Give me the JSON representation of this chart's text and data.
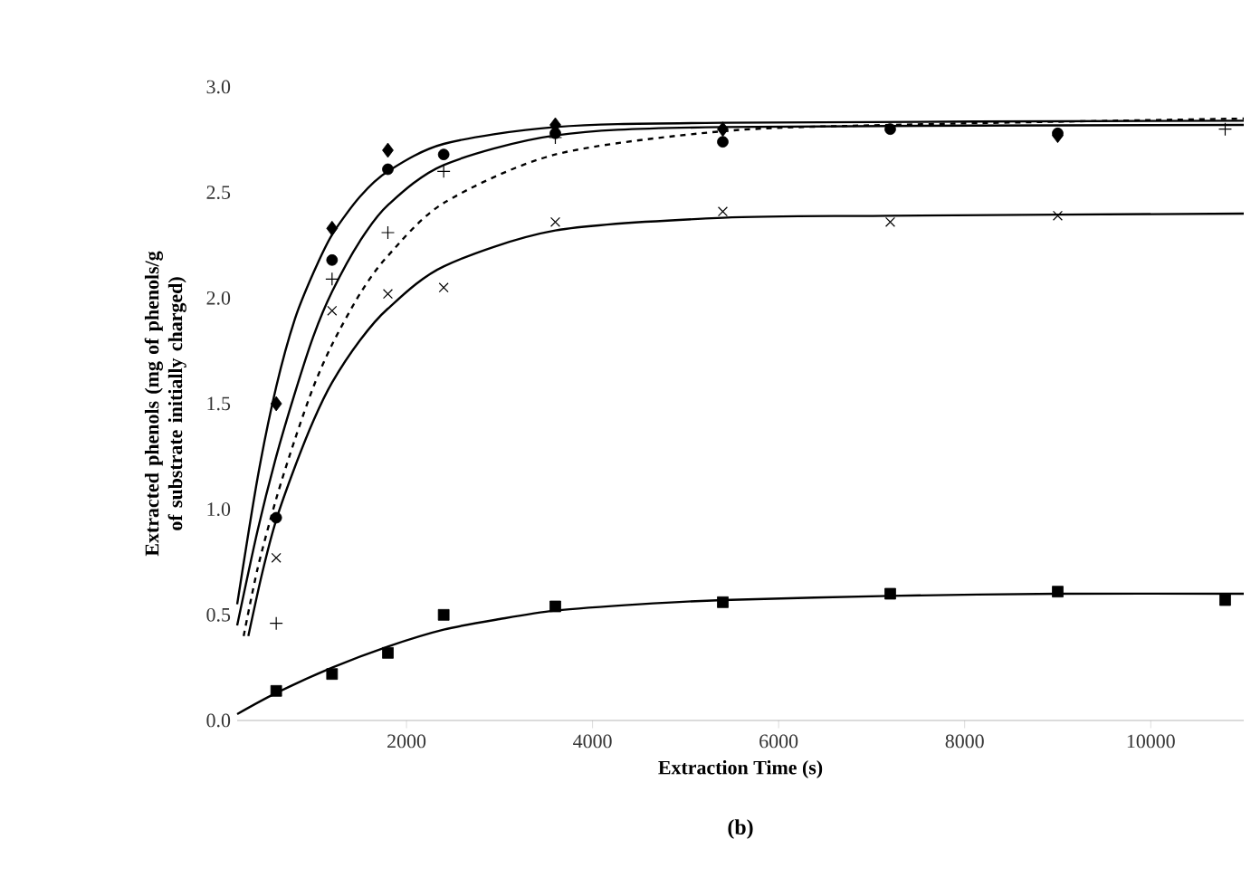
{
  "chart_data": {
    "type": "scatter",
    "xlabel": "Extraction Time (s)",
    "ylabel": "Extracted phenols (mg of phenols/g of substrate initially charged)",
    "annotations": [
      "(b)"
    ],
    "xlim": [
      180,
      11000
    ],
    "ylim": [
      0,
      3
    ],
    "xticks": [
      2000,
      4000,
      6000,
      8000,
      10000
    ],
    "yticks": [
      {
        "value": 0,
        "label": "0.0"
      },
      {
        "value": 0.5,
        "label": "0.5"
      },
      {
        "value": 1,
        "label": "1.0"
      },
      {
        "value": 1.5,
        "label": "1.5"
      },
      {
        "value": 2,
        "label": "2.0"
      },
      {
        "value": 2.5,
        "label": "2.5"
      },
      {
        "value": 3,
        "label": "3.0"
      }
    ],
    "series": [
      {
        "type": "scatter",
        "marker": "diamond",
        "color": "#000000",
        "x": [
          600,
          1200,
          1800,
          3600,
          5400,
          9000
        ],
        "values": [
          1.5,
          2.33,
          2.7,
          2.82,
          2.8,
          2.77
        ]
      },
      {
        "type": "scatter",
        "marker": "circle",
        "color": "#000000",
        "x": [
          600,
          1200,
          1800,
          2400,
          3600,
          5400,
          7200,
          9000
        ],
        "values": [
          0.96,
          2.18,
          2.61,
          2.68,
          2.78,
          2.74,
          2.8,
          2.78
        ]
      },
      {
        "type": "scatter",
        "marker": "plus",
        "color": "#000000",
        "x": [
          600,
          1200,
          1800,
          2400,
          3600,
          10800
        ],
        "values": [
          0.46,
          2.09,
          2.31,
          2.6,
          2.76,
          2.8
        ]
      },
      {
        "type": "scatter",
        "marker": "cross",
        "color": "#000000",
        "x": [
          600,
          1200,
          1800,
          2400,
          3600,
          5400,
          7200,
          9000
        ],
        "values": [
          0.77,
          1.94,
          2.02,
          2.05,
          2.36,
          2.41,
          2.36,
          2.39
        ]
      },
      {
        "type": "scatter",
        "marker": "square",
        "color": "#000000",
        "x": [
          600,
          1200,
          1800,
          2400,
          3600,
          5400,
          7200,
          9000,
          10800
        ],
        "values": [
          0.14,
          0.22,
          0.32,
          0.5,
          0.54,
          0.56,
          0.6,
          0.61,
          0.57
        ]
      },
      {
        "type": "line",
        "line_style": "solid",
        "color": "#000000",
        "x": [
          180,
          400,
          600,
          800,
          1000,
          1200,
          1500,
          1800,
          2400,
          3600,
          5400,
          11000
        ],
        "values": [
          0.55,
          1.15,
          1.58,
          1.9,
          2.12,
          2.3,
          2.48,
          2.6,
          2.73,
          2.81,
          2.83,
          2.84
        ]
      },
      {
        "type": "line",
        "line_style": "solid",
        "color": "#000000",
        "x": [
          180,
          400,
          600,
          800,
          1000,
          1200,
          1500,
          1800,
          2400,
          3600,
          5400,
          11000
        ],
        "values": [
          0.45,
          0.9,
          1.25,
          1.55,
          1.82,
          2.03,
          2.27,
          2.44,
          2.63,
          2.77,
          2.81,
          2.82
        ]
      },
      {
        "type": "line",
        "line_style": "dashed",
        "color": "#000000",
        "x": [
          250,
          400,
          600,
          800,
          1000,
          1200,
          1500,
          1800,
          2400,
          3600,
          5400,
          7200,
          11000
        ],
        "values": [
          0.4,
          0.72,
          1.05,
          1.33,
          1.58,
          1.78,
          2.02,
          2.2,
          2.45,
          2.68,
          2.79,
          2.82,
          2.85
        ]
      },
      {
        "type": "line",
        "line_style": "solid",
        "color": "#000000",
        "x": [
          300,
          450,
          600,
          800,
          1000,
          1200,
          1500,
          1800,
          2400,
          3600,
          5400,
          7200,
          11000
        ],
        "values": [
          0.4,
          0.7,
          0.95,
          1.2,
          1.42,
          1.6,
          1.8,
          1.95,
          2.15,
          2.32,
          2.38,
          2.39,
          2.4
        ]
      },
      {
        "type": "line",
        "line_style": "solid",
        "color": "#000000",
        "x": [
          180,
          600,
          1200,
          1800,
          2400,
          3000,
          3600,
          4500,
          5400,
          7200,
          9000,
          11000
        ],
        "values": [
          0.03,
          0.13,
          0.25,
          0.35,
          0.43,
          0.48,
          0.52,
          0.55,
          0.57,
          0.59,
          0.6,
          0.6
        ]
      }
    ]
  }
}
